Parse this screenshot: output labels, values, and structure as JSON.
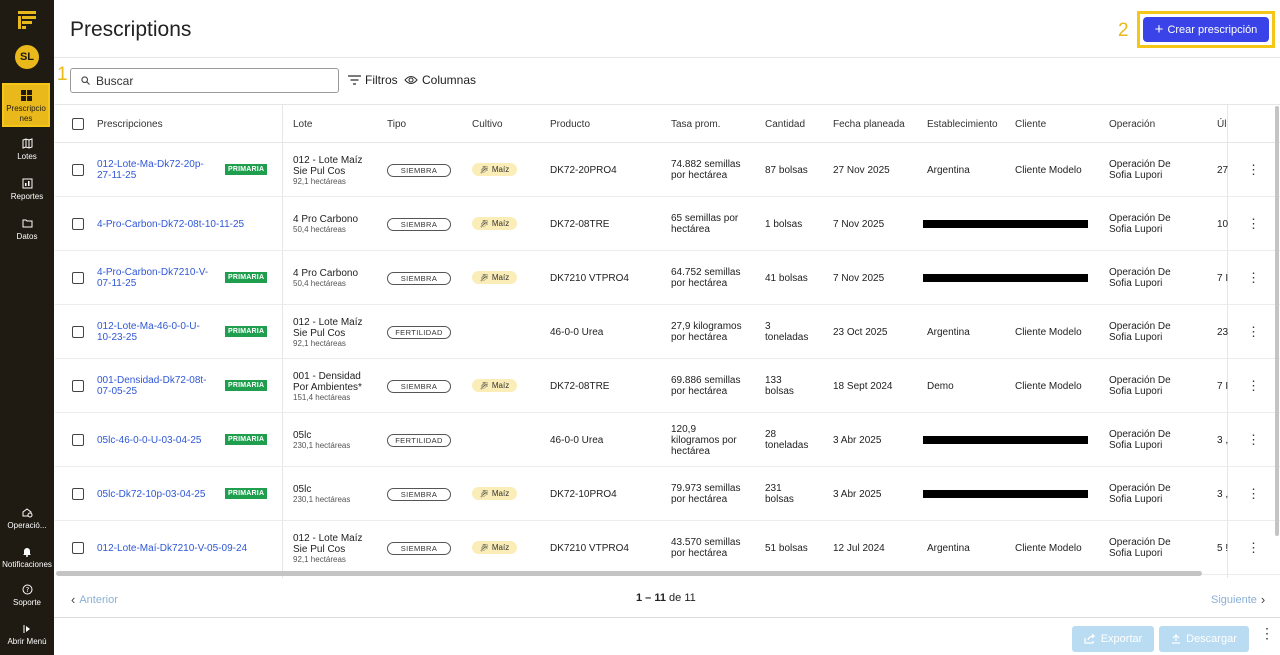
{
  "sidebar": {
    "avatar": "SL",
    "items": [
      {
        "label": "Prescripcio\nnes",
        "icon": "grid-icon",
        "active": true
      },
      {
        "label": "Lotes",
        "icon": "map-icon"
      },
      {
        "label": "Reportes",
        "icon": "report-icon"
      },
      {
        "label": "Datos",
        "icon": "folder-icon"
      }
    ],
    "bottom": [
      {
        "label": "Operació...",
        "icon": "operation-icon"
      },
      {
        "label": "Notificaciones",
        "icon": "bell-icon"
      },
      {
        "label": "Soporte",
        "icon": "help-icon"
      },
      {
        "label": "Abrir Menú",
        "icon": "expand-icon"
      }
    ]
  },
  "annotations": {
    "one": "1",
    "two": "2"
  },
  "header": {
    "title": "Prescriptions",
    "create_label": "Crear prescripción"
  },
  "toolbar": {
    "search_placeholder": "Buscar",
    "filters": "Filtros",
    "columns": "Columnas"
  },
  "table": {
    "headers": {
      "prescripciones": "Prescripciones",
      "lote": "Lote",
      "tipo": "Tipo",
      "cultivo": "Cultivo",
      "producto": "Producto",
      "tasa": "Tasa prom.",
      "cantidad": "Cantidad",
      "fecha": "Fecha planeada",
      "establecimiento": "Establecimiento",
      "cliente": "Cliente",
      "operacion": "Operación",
      "ultimo": "Úl"
    },
    "badge": "PRIMARIA",
    "rows": [
      {
        "name": "012-Lote-Ma-Dk72-20p-\n27-11-25",
        "primary": true,
        "lote": "012 - Lote Maíz\nSie Pul Cos",
        "area": "92,1 hectáreas",
        "tipo": "SIEMBRA",
        "cultivo": "Maíz",
        "producto": "DK72-20PRO4",
        "tasa": "74.882 semillas\npor hectárea",
        "cantidad": "87 bolsas",
        "fecha": "27 Nov 2025",
        "establecimiento": "Argentina",
        "cliente": "Cliente Modelo",
        "operacion": "Operación De\nSofia Lupori",
        "ultimo": "27",
        "redacted": false
      },
      {
        "name": "4-Pro-Carbon-Dk72-08t-10-11-25",
        "primary": false,
        "lote": "4 Pro Carbono",
        "area": "50,4 hectáreas",
        "tipo": "SIEMBRA",
        "cultivo": "Maíz",
        "producto": "DK72-08TRE",
        "tasa": "65 semillas por\nhectárea",
        "cantidad": "1 bolsas",
        "fecha": "7 Nov 2025",
        "establecimiento": "",
        "cliente": "",
        "operacion": "Operación De\nSofia Lupori",
        "ultimo": "10",
        "redacted": true
      },
      {
        "name": "4-Pro-Carbon-Dk7210-V-\n07-11-25",
        "primary": true,
        "lote": "4 Pro Carbono",
        "area": "50,4 hectáreas",
        "tipo": "SIEMBRA",
        "cultivo": "Maíz",
        "producto": "DK7210 VTPRO4",
        "tasa": "64.752 semillas\npor hectárea",
        "cantidad": "41 bolsas",
        "fecha": "7 Nov 2025",
        "establecimiento": "",
        "cliente": "",
        "operacion": "Operación De\nSofia Lupori",
        "ultimo": "7 I",
        "redacted": true
      },
      {
        "name": "012-Lote-Ma-46-0-0-U-\n10-23-25",
        "primary": true,
        "lote": "012 - Lote Maíz\nSie Pul Cos",
        "area": "92,1 hectáreas",
        "tipo": "FERTILIDAD",
        "cultivo": "",
        "producto": "46-0-0 Urea",
        "tasa": "27,9 kilogramos\npor hectárea",
        "cantidad": "3\ntoneladas",
        "fecha": "23 Oct 2025",
        "establecimiento": "Argentina",
        "cliente": "Cliente Modelo",
        "operacion": "Operación De\nSofia Lupori",
        "ultimo": "23",
        "redacted": false
      },
      {
        "name": "001-Densidad-Dk72-08t-\n07-05-25",
        "primary": true,
        "lote": "001 - Densidad\nPor Ambientes*",
        "area": "151,4 hectáreas",
        "tipo": "SIEMBRA",
        "cultivo": "Maíz",
        "producto": "DK72-08TRE",
        "tasa": "69.886 semillas\npor hectárea",
        "cantidad": "133\nbolsas",
        "fecha": "18 Sept 2024",
        "establecimiento": "Demo",
        "cliente": "Cliente Modelo",
        "operacion": "Operación De\nSofia Lupori",
        "ultimo": "7 I",
        "redacted": false
      },
      {
        "name": "05lc-46-0-0-U-03-04-25",
        "primary": true,
        "lote": "05lc",
        "area": "230,1 hectáreas",
        "tipo": "FERTILIDAD",
        "cultivo": "",
        "producto": "46-0-0 Urea",
        "tasa": "120,9\nkilogramos por\nhectárea",
        "cantidad": "28\ntoneladas",
        "fecha": "3 Abr 2025",
        "establecimiento": "",
        "cliente": "",
        "operacion": "Operación De\nSofia Lupori",
        "ultimo": "3 ,",
        "redacted": true
      },
      {
        "name": "05lc-Dk72-10p-03-04-25",
        "primary": true,
        "lote": "05lc",
        "area": "230,1 hectáreas",
        "tipo": "SIEMBRA",
        "cultivo": "Maíz",
        "producto": "DK72-10PRO4",
        "tasa": "79.973 semillas\npor hectárea",
        "cantidad": "231\nbolsas",
        "fecha": "3 Abr 2025",
        "establecimiento": "",
        "cliente": "",
        "operacion": "Operación De\nSofia Lupori",
        "ultimo": "3 ,",
        "redacted": true
      },
      {
        "name": "012-Lote-Maí-Dk7210-V-05-09-24",
        "primary": false,
        "lote": "012 - Lote Maíz\nSie Pul Cos",
        "area": "92,1 hectáreas",
        "tipo": "SIEMBRA",
        "cultivo": "Maíz",
        "producto": "DK7210 VTPRO4",
        "tasa": "43.570 semillas\npor hectárea",
        "cantidad": "51 bolsas",
        "fecha": "12 Jul 2024",
        "establecimiento": "Argentina",
        "cliente": "Cliente Modelo",
        "operacion": "Operación De\nSofia Lupori",
        "ultimo": "5 !",
        "redacted": false
      }
    ]
  },
  "pagination": {
    "prev": "Anterior",
    "range": "1 – 11",
    "of": "de 11",
    "next": "Siguiente"
  },
  "footer": {
    "export": "Exportar",
    "download": "Descargar"
  },
  "colors": {
    "sidebar": "#1f1a12",
    "accent": "#e9b91c",
    "primary_button": "#3a43e8",
    "badge": "#1f9e4e",
    "link": "#2f57d6"
  }
}
